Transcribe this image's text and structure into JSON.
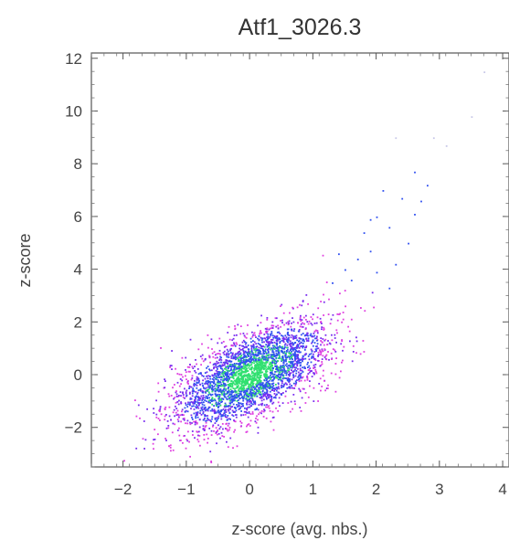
{
  "chart_data": {
    "type": "scatter",
    "title": "Atf1_3026.3",
    "xlabel": "z-score (avg. nbs.)",
    "ylabel": "z-score",
    "xlim": [
      -2.5,
      4.1
    ],
    "ylim": [
      -3.5,
      12.2
    ],
    "xticks": [
      -2,
      -1,
      0,
      1,
      2,
      3,
      4
    ],
    "yticks": [
      -2,
      0,
      2,
      4,
      6,
      8,
      10,
      12
    ],
    "grid": false,
    "legend": "none",
    "density_coloring": true,
    "colors": {
      "sparse": "#e040e0",
      "medium": "#7a2ef0",
      "dense": "#3050f0",
      "core": "#30e070",
      "frame": "#555555"
    },
    "distribution": {
      "center": [
        0.0,
        0.0
      ],
      "sd_x": 0.6,
      "correlation": 0.62,
      "sd_y": 1.0
    },
    "outliers": [
      [
        2.3,
        9.0
      ],
      [
        2.9,
        9.0
      ],
      [
        3.1,
        8.7
      ],
      [
        3.5,
        9.8
      ],
      [
        2.6,
        7.7
      ],
      [
        2.1,
        7.0
      ],
      [
        2.4,
        6.7
      ],
      [
        2.7,
        6.6
      ],
      [
        2.0,
        6.0
      ],
      [
        2.2,
        5.6
      ],
      [
        1.8,
        5.4
      ],
      [
        2.5,
        5.0
      ],
      [
        1.9,
        4.7
      ],
      [
        2.3,
        4.2
      ],
      [
        1.7,
        4.4
      ],
      [
        1.5,
        4.0
      ],
      [
        2.0,
        3.9
      ],
      [
        1.6,
        3.6
      ],
      [
        2.2,
        3.3
      ],
      [
        1.3,
        3.5
      ],
      [
        3.7,
        11.5
      ],
      [
        1.9,
        5.9
      ],
      [
        2.6,
        6.1
      ],
      [
        1.4,
        4.6
      ],
      [
        2.8,
        7.2
      ]
    ]
  }
}
